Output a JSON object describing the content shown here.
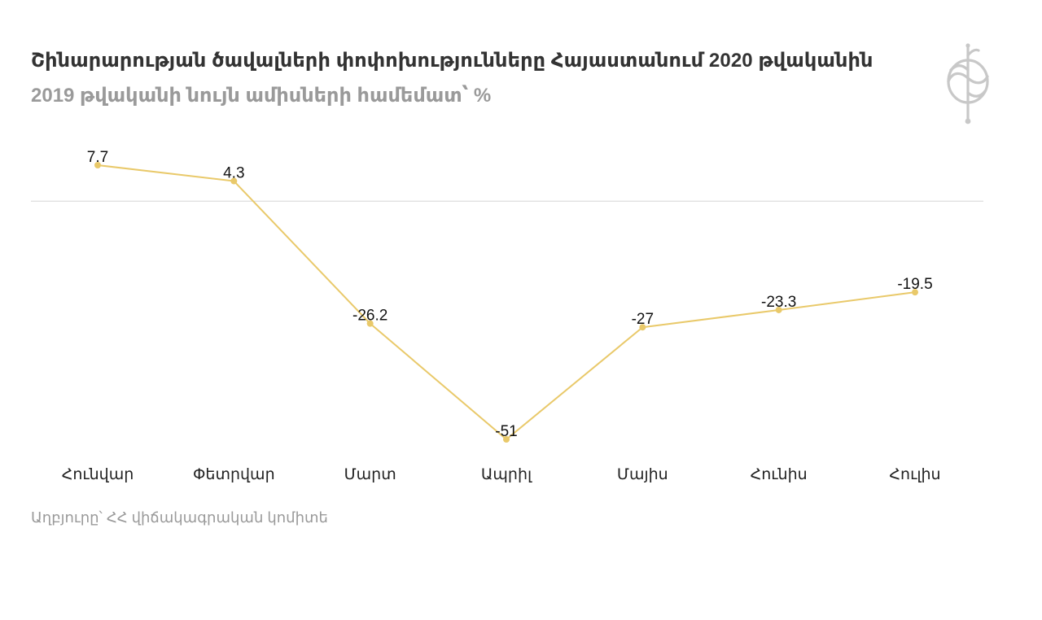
{
  "title": "Շինարարության ծավալների փոփոխությունները Հայաստանում 2020 թվականին",
  "subtitle": "2019 թվականի նույն ամիսների համեմատ՝ %",
  "source": "Աղբյուրը՝ ՀՀ վիճակագրական կոմիտե",
  "logo": "emblem-icon",
  "colors": {
    "line": "#e9c96a",
    "point": "#e9c96a",
    "zero_line": "#d6d6d6"
  },
  "chart_data": {
    "type": "line",
    "title": "Շինարարության ծավալների փոփոխությունները Հայաստանում 2020 թվականին",
    "subtitle": "2019 թվականի նույն ամիսների համեմատ՝ %",
    "categories": [
      "Հունվար",
      "Փետրվար",
      "Մարտ",
      "Ապրիլ",
      "Մայիս",
      "Հունիս",
      "Հուլիս"
    ],
    "series": [
      {
        "values": [
          7.7,
          4.3,
          -26.2,
          -51,
          -27,
          -23.3,
          -19.5
        ],
        "labels": [
          "7.7",
          "4.3",
          "-26.2",
          "-51",
          "-27",
          "-23.3",
          "-19.5"
        ]
      }
    ],
    "xlabel": "",
    "ylabel": "",
    "ylim": [
      -51,
      7.7
    ],
    "grid": false,
    "zero_line": true,
    "data_labels": true,
    "legend": "none"
  }
}
